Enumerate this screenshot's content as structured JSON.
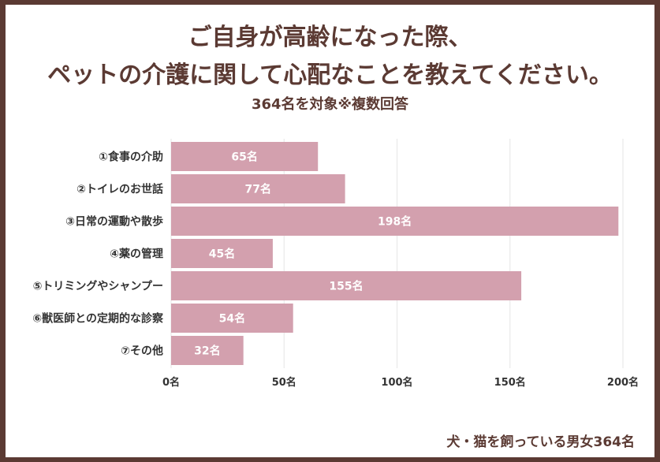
{
  "title_line1": "ご自身が高齢になった際、",
  "title_line2": "ペットの介護に関して心配なことを教えてください。",
  "subtitle": "364名を対象※複数回答",
  "footer": "犬・猫を飼っている男女364名",
  "colors": {
    "bar": "#d3a0ae",
    "frame": "#5b3a33",
    "title": "#5b3a33",
    "grid": "#e6e6e6"
  },
  "chart_data": {
    "type": "bar",
    "orientation": "horizontal",
    "categories": [
      "①食事の介助",
      "②トイレのお世話",
      "③日常の運動や散歩",
      "④薬の管理",
      "⑤トリミングやシャンプー",
      "⑥獣医師との定期的な診察",
      "⑦その他"
    ],
    "values": [
      65,
      77,
      198,
      45,
      155,
      54,
      32
    ],
    "data_labels": [
      "65名",
      "77名",
      "198名",
      "45名",
      "155名",
      "54名",
      "32名"
    ],
    "x_ticks": [
      0,
      50,
      100,
      150,
      200
    ],
    "x_tick_labels": [
      "0名",
      "50名",
      "100名",
      "150名",
      "200名"
    ],
    "xlim": [
      0,
      200
    ],
    "grid": true,
    "title": "ご自身が高齢になった際、ペットの介護に関して心配なことを教えてください。"
  }
}
